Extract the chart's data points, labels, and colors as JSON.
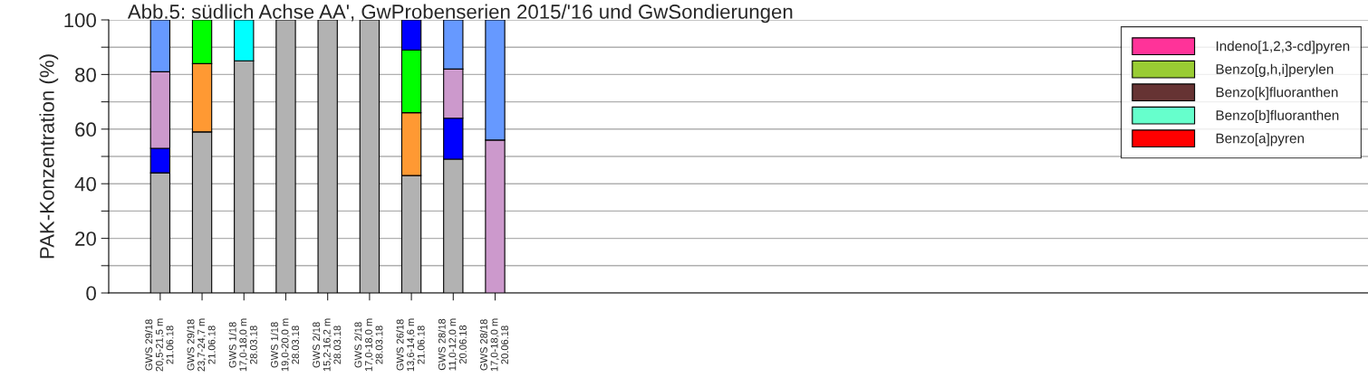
{
  "chart_data": {
    "type": "bar",
    "stacked": true,
    "title": "Abb.5: südlich Achse AA', GwProbenserien 2015/'16 und GwSondierungen",
    "ylabel": "PAK-Konzentration (%)",
    "categories": [
      "GWS 29/18\n20,5-21,5 m\n21.06.18",
      "GWS 29/18\n23,7-24,7 m\n21.06.18",
      "GWS 1/18\n17,0-18,0 m\n28.03.18",
      "GWS 1/18\n19,0-20,0 m\n28.03.18",
      "GWS 2/18\n15,2-16,2 m\n28.03.18",
      "GWS 2/18\n17,0-18,0 m\n28.03.18",
      "GWS 26/18\n13,6-14,6 m\n21.06.18",
      "GWS 28/18\n11,0-12,0 m\n20.06.18",
      "GWS 28/18\n17,0-18,0 m\n20.06.18"
    ],
    "series": [
      {
        "color": "#b2b2b2",
        "values": [
          44,
          59,
          85,
          100,
          100,
          100,
          43,
          49,
          null
        ]
      },
      {
        "color": "#ff9933",
        "values": [
          null,
          25,
          null,
          null,
          null,
          null,
          23,
          null,
          null
        ]
      },
      {
        "color": "#00ff00",
        "values": [
          null,
          16,
          null,
          null,
          null,
          null,
          23,
          null,
          null
        ]
      },
      {
        "color": "#0000ff",
        "values": [
          9,
          null,
          null,
          null,
          null,
          null,
          11,
          15,
          null
        ]
      },
      {
        "color": "#cc99cc",
        "values": [
          28,
          null,
          null,
          null,
          null,
          null,
          null,
          18,
          56
        ]
      },
      {
        "color": "#00ffff",
        "values": [
          null,
          null,
          15,
          null,
          null,
          null,
          null,
          null,
          null
        ]
      },
      {
        "color": "#6699ff",
        "values": [
          19,
          null,
          null,
          null,
          null,
          null,
          null,
          18,
          44
        ]
      },
      {
        "name": "Indeno[1,2,3-cd]pyren",
        "color": "#ff3399",
        "values": [
          null,
          null,
          null,
          null,
          null,
          null,
          null,
          null,
          null
        ]
      },
      {
        "name": "Benzo[g,h,i]perylen",
        "color": "#99cc33",
        "values": [
          null,
          null,
          null,
          null,
          null,
          null,
          null,
          null,
          null
        ]
      },
      {
        "name": "Benzo[k]fluoranthen",
        "color": "#663333",
        "values": [
          null,
          null,
          null,
          null,
          null,
          null,
          null,
          null,
          null
        ]
      },
      {
        "name": "Benzo[b]fluoranthen",
        "color": "#66ffcc",
        "values": [
          null,
          null,
          null,
          null,
          null,
          null,
          null,
          null,
          null
        ]
      },
      {
        "name": "Benzo[a]pyren",
        "color": "#ff0000",
        "values": [
          null,
          null,
          null,
          null,
          null,
          null,
          null,
          null,
          null
        ]
      }
    ],
    "ylim": [
      0,
      100
    ],
    "yticks": [
      0,
      {
        "value": 10,
        "label": null
      },
      20,
      {
        "value": 30,
        "label": null
      },
      40,
      {
        "value": 50,
        "label": null
      },
      60,
      {
        "value": 70,
        "label": null
      },
      80,
      {
        "value": 90,
        "label": null
      },
      100
    ],
    "grid": "y",
    "legend": "top right"
  }
}
